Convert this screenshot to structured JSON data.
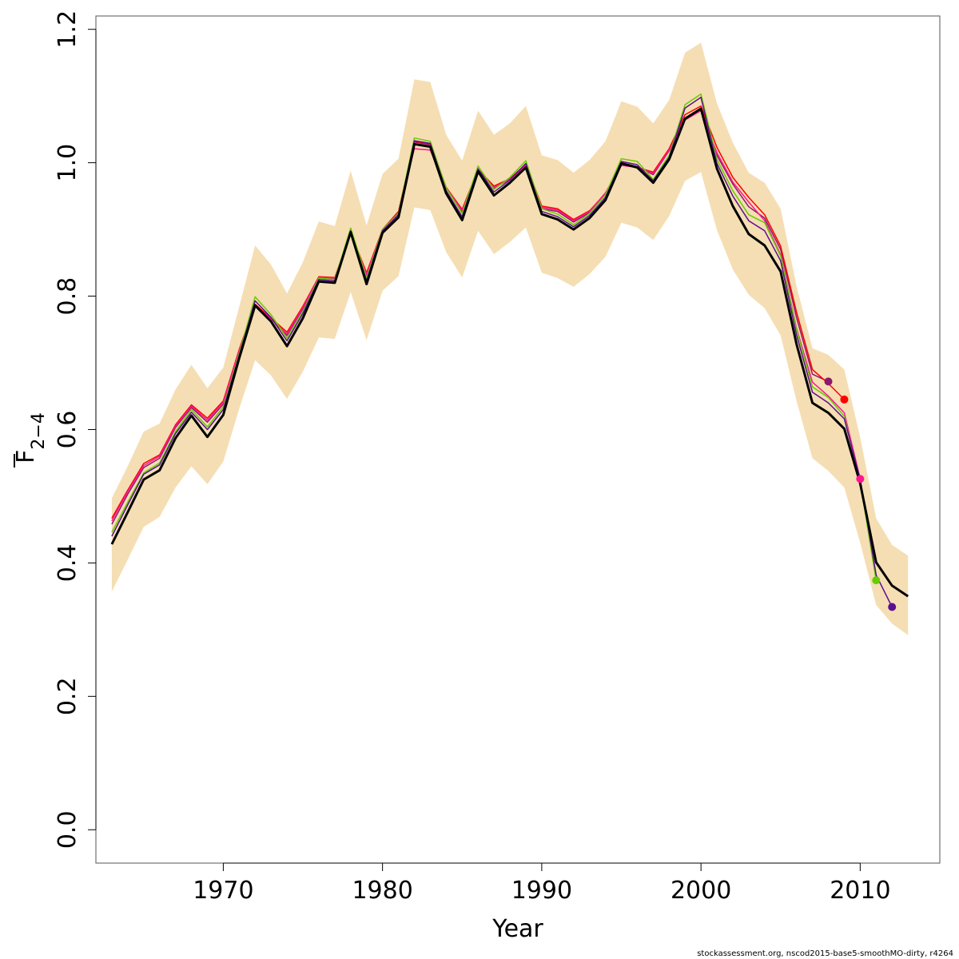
{
  "chart_data": {
    "type": "line",
    "xlabel": "Year",
    "ylabel_main": "F",
    "ylabel_sub": "2−4",
    "xlim": [
      1962,
      2015
    ],
    "ylim": [
      -0.05,
      1.22
    ],
    "x_ticks": [
      1970,
      1980,
      1990,
      2000,
      2010
    ],
    "y_ticks": [
      0.0,
      0.2,
      0.4,
      0.6,
      0.8,
      1.0,
      1.2
    ],
    "x_tick_labels": [
      "1970",
      "1980",
      "1990",
      "2000",
      "2010"
    ],
    "y_tick_labels": [
      "0.0",
      "0.2",
      "0.4",
      "0.6",
      "0.8",
      "1.0",
      "1.2"
    ],
    "grid": false,
    "band_color": "#f5deb3",
    "years": [
      1963,
      1964,
      1965,
      1966,
      1967,
      1968,
      1969,
      1970,
      1971,
      1972,
      1973,
      1974,
      1975,
      1976,
      1977,
      1978,
      1979,
      1980,
      1981,
      1982,
      1983,
      1984,
      1985,
      1986,
      1987,
      1988,
      1989,
      1990,
      1991,
      1992,
      1993,
      1994,
      1995,
      1996,
      1997,
      1998,
      1999,
      2000,
      2001,
      2002,
      2003,
      2004,
      2005,
      2006,
      2007,
      2008,
      2009,
      2010,
      2011,
      2012,
      2013
    ],
    "band_upper": [
      0.497,
      0.545,
      0.597,
      0.609,
      0.66,
      0.697,
      0.662,
      0.693,
      0.784,
      0.876,
      0.847,
      0.804,
      0.851,
      0.912,
      0.905,
      0.988,
      0.906,
      0.983,
      1.006,
      1.125,
      1.121,
      1.042,
      1.003,
      1.078,
      1.042,
      1.059,
      1.085,
      1.011,
      1.004,
      0.985,
      1.004,
      1.032,
      1.092,
      1.084,
      1.059,
      1.094,
      1.165,
      1.18,
      1.089,
      1.03,
      0.985,
      0.97,
      0.931,
      0.815,
      0.722,
      0.712,
      0.69,
      0.588,
      0.467,
      0.427,
      0.411
    ],
    "band_lower": [
      0.357,
      0.405,
      0.454,
      0.469,
      0.513,
      0.545,
      0.518,
      0.552,
      0.631,
      0.704,
      0.681,
      0.646,
      0.687,
      0.738,
      0.736,
      0.806,
      0.734,
      0.808,
      0.83,
      0.933,
      0.929,
      0.866,
      0.828,
      0.898,
      0.863,
      0.881,
      0.903,
      0.835,
      0.827,
      0.814,
      0.833,
      0.859,
      0.91,
      0.903,
      0.884,
      0.92,
      0.973,
      0.986,
      0.899,
      0.84,
      0.802,
      0.782,
      0.741,
      0.643,
      0.557,
      0.538,
      0.513,
      0.43,
      0.337,
      0.309,
      0.292
    ],
    "series": [
      {
        "role": "base",
        "color": "#000000",
        "width": 3,
        "marker": null,
        "values": [
          0.428,
          0.476,
          0.525,
          0.539,
          0.587,
          0.621,
          0.589,
          0.622,
          0.707,
          0.786,
          0.762,
          0.725,
          0.767,
          0.822,
          0.82,
          0.896,
          0.818,
          0.895,
          0.918,
          1.028,
          1.024,
          0.954,
          0.914,
          0.987,
          0.951,
          0.97,
          0.993,
          0.923,
          0.915,
          0.9,
          0.917,
          0.944,
          0.999,
          0.993,
          0.97,
          1.005,
          1.066,
          1.081,
          0.991,
          0.935,
          0.893,
          0.876,
          0.837,
          0.728,
          0.64,
          0.625,
          0.601,
          0.519,
          0.401,
          0.366,
          0.35
        ]
      },
      {
        "role": "peel",
        "color": "#8b1a6b",
        "width": 1.5,
        "marker": {
          "x": 2008,
          "y": 0.672
        },
        "values": [
          0.458,
          0.503,
          0.543,
          0.557,
          0.603,
          0.633,
          0.611,
          0.638,
          0.716,
          0.787,
          0.766,
          0.741,
          0.781,
          0.827,
          0.826,
          0.895,
          0.831,
          0.899,
          0.925,
          1.031,
          1.027,
          0.962,
          0.926,
          0.99,
          0.962,
          0.975,
          0.996,
          0.931,
          0.927,
          0.911,
          0.925,
          0.952,
          1.0,
          0.994,
          0.982,
          1.018,
          1.067,
          1.082,
          1.011,
          0.968,
          0.934,
          0.917,
          0.87,
          0.768,
          0.683,
          0.672
        ]
      },
      {
        "role": "peel",
        "color": "#ff0000",
        "width": 1.5,
        "marker": {
          "x": 2009,
          "y": 0.645
        },
        "values": [
          0.467,
          0.509,
          0.549,
          0.562,
          0.607,
          0.637,
          0.617,
          0.643,
          0.72,
          0.788,
          0.767,
          0.746,
          0.785,
          0.829,
          0.828,
          0.895,
          0.835,
          0.9,
          0.927,
          1.032,
          1.028,
          0.963,
          0.93,
          0.99,
          0.965,
          0.976,
          0.998,
          0.935,
          0.931,
          0.915,
          0.928,
          0.954,
          0.999,
          0.993,
          0.986,
          1.021,
          1.072,
          1.085,
          1.023,
          0.978,
          0.948,
          0.922,
          0.875,
          0.776,
          0.69,
          0.669,
          0.645
        ]
      },
      {
        "role": "peel",
        "color": "#ff1493",
        "width": 1.5,
        "marker": {
          "x": 2010,
          "y": 0.526
        },
        "values": [
          0.463,
          0.507,
          0.546,
          0.56,
          0.605,
          0.635,
          0.614,
          0.641,
          0.718,
          0.786,
          0.766,
          0.743,
          0.783,
          0.828,
          0.827,
          0.894,
          0.833,
          0.899,
          0.925,
          1.021,
          1.019,
          0.962,
          0.928,
          0.988,
          0.963,
          0.975,
          0.996,
          0.933,
          0.929,
          0.913,
          0.927,
          0.955,
          0.996,
          0.993,
          0.984,
          1.019,
          1.064,
          1.078,
          1.015,
          0.971,
          0.941,
          0.913,
          0.862,
          0.752,
          0.671,
          0.65,
          0.625,
          0.526
        ]
      },
      {
        "role": "peel",
        "color": "#66cc00",
        "width": 1.5,
        "marker": {
          "x": 2011,
          "y": 0.374
        },
        "values": [
          0.446,
          0.491,
          0.535,
          0.55,
          0.597,
          0.63,
          0.604,
          0.634,
          0.714,
          0.799,
          0.772,
          0.737,
          0.777,
          0.827,
          0.825,
          0.902,
          0.827,
          0.9,
          0.924,
          1.037,
          1.032,
          0.962,
          0.924,
          0.995,
          0.96,
          0.978,
          1.003,
          0.931,
          0.923,
          0.907,
          0.924,
          0.952,
          1.006,
          1.002,
          0.975,
          1.011,
          1.087,
          1.103,
          1.005,
          0.958,
          0.922,
          0.91,
          0.86,
          0.75,
          0.664,
          0.648,
          0.62,
          0.521,
          0.374
        ]
      },
      {
        "role": "peel",
        "color": "#5b0f8e",
        "width": 1.5,
        "marker": {
          "x": 2012,
          "y": 0.334
        },
        "values": [
          0.44,
          0.487,
          0.533,
          0.547,
          0.594,
          0.626,
          0.6,
          0.63,
          0.711,
          0.793,
          0.768,
          0.733,
          0.774,
          0.825,
          0.823,
          0.898,
          0.823,
          0.898,
          0.922,
          1.033,
          1.029,
          0.958,
          0.919,
          0.991,
          0.956,
          0.974,
          0.999,
          0.927,
          0.919,
          0.904,
          0.921,
          0.948,
          1.002,
          0.997,
          0.973,
          1.008,
          1.082,
          1.098,
          0.999,
          0.95,
          0.913,
          0.898,
          0.853,
          0.742,
          0.656,
          0.64,
          0.616,
          0.525,
          0.382,
          0.334
        ]
      }
    ]
  },
  "credit_text": "stockassessment.org, nscod2015-base5-smoothMO-dirty, r4264"
}
